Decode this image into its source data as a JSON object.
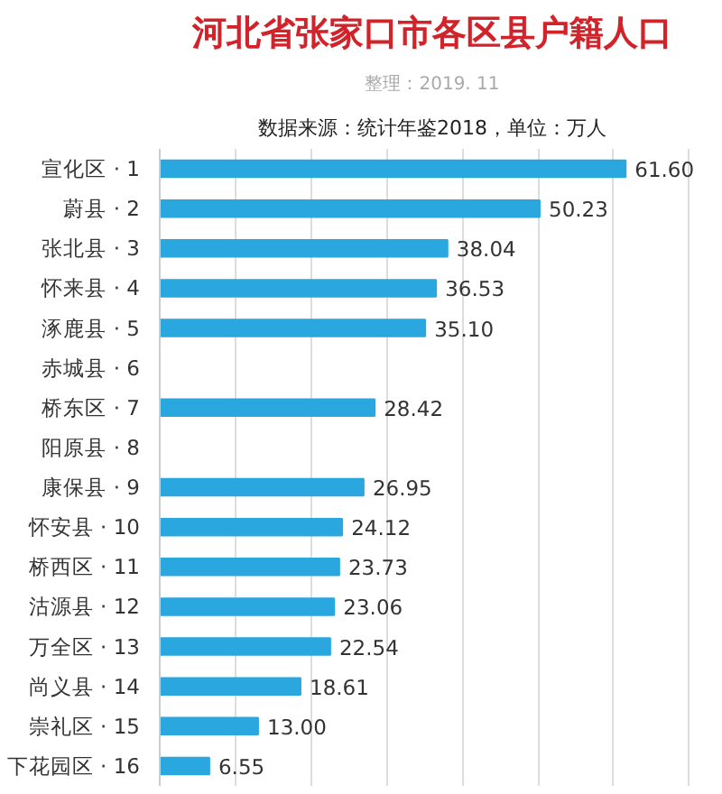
{
  "chart_data": {
    "type": "bar",
    "orientation": "horizontal",
    "title": "河北省张家口市各区县户籍人口",
    "subtitle": "整理：2019. 11",
    "annotations": [
      "数据来源：统计年鉴2018，单位：万人"
    ],
    "categories": [
      "宣化区 · 1",
      "蔚县 · 2",
      "张北县 · 3",
      "怀来县 · 4",
      "涿鹿县 · 5",
      "赤城县 · 6",
      "桥东区 · 7",
      "阳原县 · 8",
      "康保县 · 9",
      "怀安县 · 10",
      "桥西区 · 11",
      "沽源县 · 12",
      "万全区 · 13",
      "尚义县 · 14",
      "崇礼区 · 15",
      "下花园区 · 16"
    ],
    "values": [
      61.6,
      50.23,
      38.04,
      36.53,
      35.1,
      null,
      28.42,
      null,
      26.95,
      24.12,
      23.73,
      23.06,
      22.54,
      18.61,
      13.0,
      6.55
    ],
    "value_labels": [
      "61.60",
      "50.23",
      "38.04",
      "36.53",
      "35.10",
      null,
      "28.42",
      null,
      "26.95",
      "24.12",
      "23.73",
      "23.06",
      "22.54",
      "18.61",
      "13.00",
      "6.55"
    ],
    "color": "#2aa7df",
    "grid": "x",
    "tick_labels": "y"
  }
}
